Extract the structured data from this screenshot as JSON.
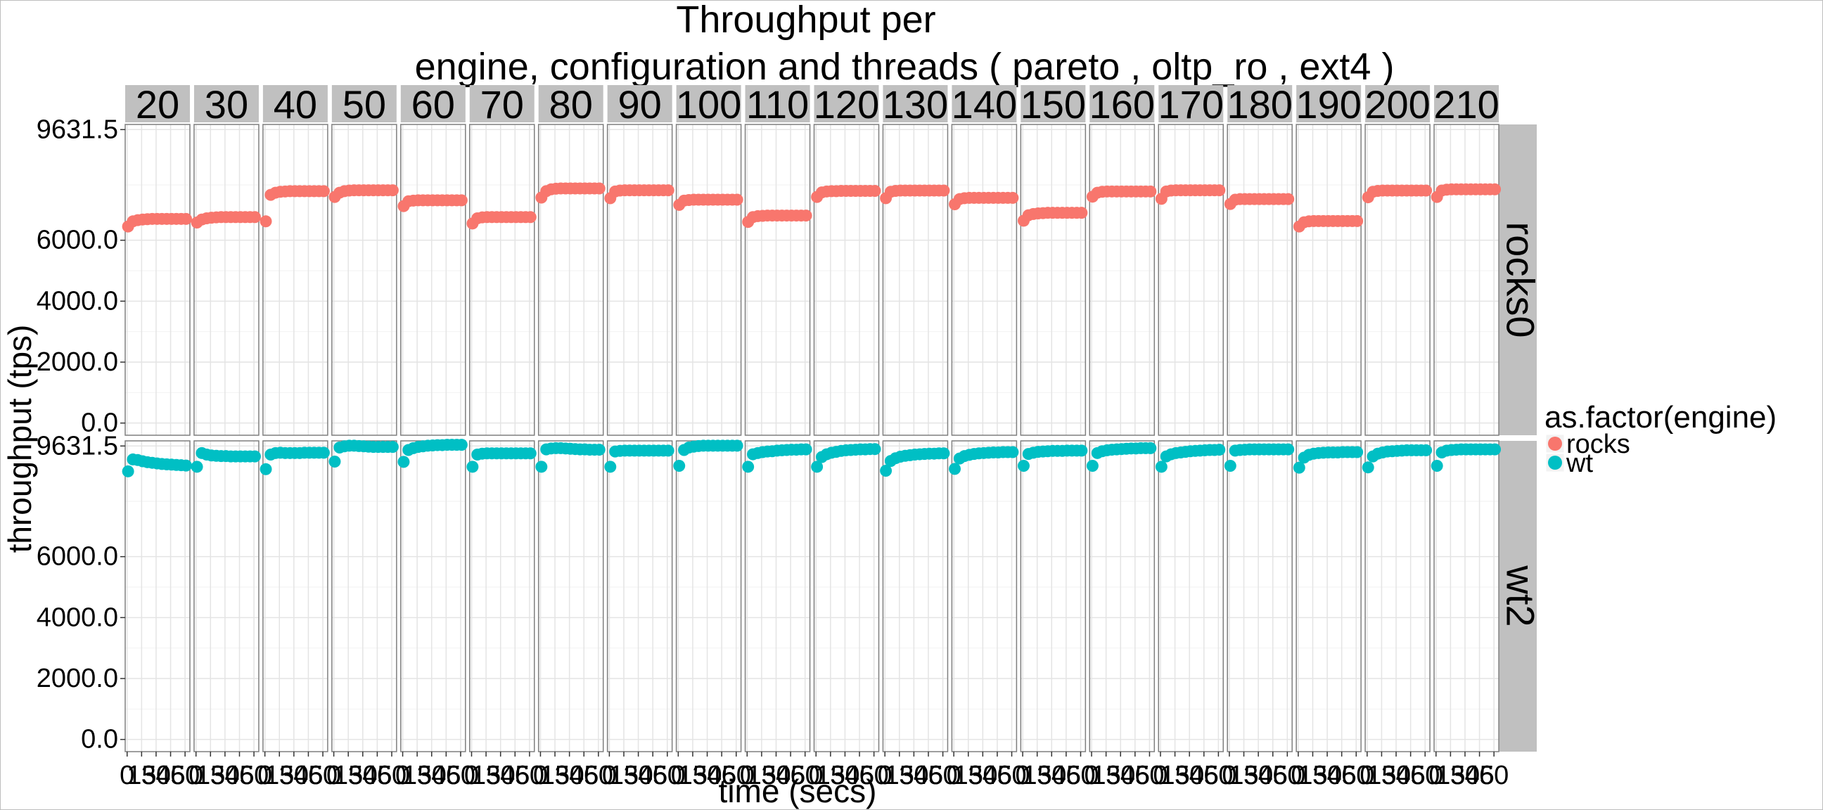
{
  "chart_data": {
    "type": "scatter",
    "title_line1": "Throughput per",
    "title_line2": "engine, configuration and threads ( pareto , oltp_ro , ext4 )",
    "xlabel": "time (secs)",
    "ylabel": "throughput (tps)",
    "facet_columns": [
      "20",
      "30",
      "40",
      "50",
      "60",
      "70",
      "80",
      "90",
      "100",
      "110",
      "120",
      "130",
      "140",
      "150",
      "160",
      "170",
      "180",
      "190",
      "200",
      "210"
    ],
    "facet_rows": [
      "rocks0",
      "wt2"
    ],
    "ylim": [
      -400,
      9800
    ],
    "yticks": [
      0,
      2000,
      4000,
      6000,
      9631.5
    ],
    "ytick_labels": [
      "0.0",
      "2000.0",
      "4000.0",
      "6000.0",
      "9631.5"
    ],
    "xlim": [
      -2,
      65
    ],
    "xticks": [
      0,
      15,
      30,
      45,
      60
    ],
    "xtick_labels": [
      "0",
      "15",
      "30",
      "45",
      "60"
    ],
    "x_times": [
      1,
      6,
      11,
      16,
      21,
      26,
      31,
      36,
      41,
      46,
      51,
      56,
      61
    ],
    "legend": {
      "title": "as.factor(engine)",
      "position": "right",
      "entries": [
        {
          "label": "rocks",
          "color": "#F8766D"
        },
        {
          "label": "wt",
          "color": "#00BFC4"
        }
      ]
    },
    "series": [
      {
        "name": "rocks",
        "facet_row": "rocks0",
        "color": "#F8766D",
        "panels": [
          [
            6450,
            6620,
            6660,
            6680,
            6690,
            6700,
            6700,
            6700,
            6700,
            6700,
            6700,
            6700,
            6700
          ],
          [
            6580,
            6680,
            6720,
            6740,
            6750,
            6760,
            6760,
            6760,
            6760,
            6760,
            6760,
            6760,
            6760
          ],
          [
            6620,
            7490,
            7560,
            7590,
            7600,
            7610,
            7610,
            7610,
            7610,
            7610,
            7610,
            7610,
            7610
          ],
          [
            7420,
            7560,
            7610,
            7630,
            7640,
            7640,
            7640,
            7640,
            7640,
            7640,
            7640,
            7640,
            7640
          ],
          [
            7120,
            7280,
            7300,
            7310,
            7310,
            7310,
            7310,
            7310,
            7310,
            7310,
            7310,
            7310,
            7310
          ],
          [
            6550,
            6720,
            6750,
            6760,
            6760,
            6760,
            6760,
            6760,
            6760,
            6760,
            6760,
            6760,
            6760
          ],
          [
            7400,
            7610,
            7670,
            7690,
            7700,
            7700,
            7700,
            7700,
            7700,
            7700,
            7700,
            7700,
            7700
          ],
          [
            7380,
            7600,
            7630,
            7640,
            7640,
            7640,
            7640,
            7640,
            7640,
            7640,
            7640,
            7640,
            7640
          ],
          [
            7160,
            7300,
            7320,
            7330,
            7330,
            7330,
            7330,
            7330,
            7330,
            7330,
            7330,
            7330,
            7330
          ],
          [
            6600,
            6760,
            6790,
            6800,
            6810,
            6810,
            6810,
            6810,
            6810,
            6810,
            6810,
            6810,
            6810
          ],
          [
            7420,
            7570,
            7600,
            7610,
            7610,
            7620,
            7620,
            7620,
            7620,
            7620,
            7620,
            7620,
            7620
          ],
          [
            7380,
            7590,
            7620,
            7630,
            7630,
            7630,
            7630,
            7630,
            7630,
            7630,
            7630,
            7630,
            7630
          ],
          [
            7180,
            7350,
            7380,
            7390,
            7390,
            7390,
            7390,
            7390,
            7390,
            7390,
            7390,
            7390,
            7390
          ],
          [
            6640,
            6820,
            6860,
            6880,
            6890,
            6900,
            6900,
            6900,
            6900,
            6900,
            6900,
            6900,
            6900
          ],
          [
            7430,
            7560,
            7590,
            7600,
            7600,
            7600,
            7600,
            7600,
            7600,
            7600,
            7600,
            7600,
            7600
          ],
          [
            7360,
            7600,
            7630,
            7640,
            7640,
            7640,
            7640,
            7640,
            7640,
            7640,
            7640,
            7640,
            7640
          ],
          [
            7190,
            7330,
            7350,
            7350,
            7350,
            7350,
            7350,
            7350,
            7350,
            7350,
            7350,
            7350,
            7350
          ],
          [
            6450,
            6590,
            6620,
            6630,
            6630,
            6630,
            6630,
            6630,
            6630,
            6630,
            6630,
            6630,
            6630
          ],
          [
            7410,
            7590,
            7620,
            7630,
            7630,
            7630,
            7630,
            7630,
            7630,
            7630,
            7630,
            7630,
            7630
          ],
          [
            7420,
            7630,
            7660,
            7670,
            7670,
            7670,
            7670,
            7670,
            7670,
            7670,
            7670,
            7670,
            7670
          ]
        ]
      },
      {
        "name": "wt",
        "facet_row": "wt2",
        "color": "#00BFC4",
        "panels": [
          [
            8800,
            9190,
            9170,
            9130,
            9100,
            9080,
            9060,
            9040,
            9030,
            9020,
            9010,
            9000,
            8990
          ],
          [
            8950,
            9400,
            9350,
            9320,
            9310,
            9300,
            9300,
            9290,
            9290,
            9290,
            9290,
            9290,
            9290
          ],
          [
            8870,
            9350,
            9400,
            9410,
            9400,
            9400,
            9400,
            9400,
            9410,
            9410,
            9410,
            9410,
            9410
          ],
          [
            9120,
            9580,
            9620,
            9640,
            9640,
            9630,
            9620,
            9610,
            9600,
            9600,
            9600,
            9600,
            9600
          ],
          [
            9110,
            9500,
            9560,
            9600,
            9620,
            9640,
            9650,
            9660,
            9660,
            9670,
            9670,
            9670,
            9670
          ],
          [
            8950,
            9350,
            9380,
            9390,
            9390,
            9390,
            9390,
            9390,
            9390,
            9390,
            9390,
            9390,
            9390
          ],
          [
            8950,
            9520,
            9550,
            9560,
            9560,
            9550,
            9540,
            9530,
            9520,
            9520,
            9510,
            9510,
            9510
          ],
          [
            8950,
            9450,
            9470,
            9480,
            9480,
            9480,
            9480,
            9480,
            9480,
            9480,
            9480,
            9480,
            9480
          ],
          [
            8980,
            9500,
            9580,
            9610,
            9630,
            9640,
            9640,
            9640,
            9640,
            9640,
            9640,
            9640,
            9640
          ],
          [
            8950,
            9360,
            9400,
            9430,
            9450,
            9460,
            9480,
            9490,
            9500,
            9510,
            9510,
            9520,
            9520
          ],
          [
            8950,
            9270,
            9360,
            9410,
            9440,
            9470,
            9490,
            9500,
            9510,
            9520,
            9520,
            9530,
            9530
          ],
          [
            8820,
            9140,
            9230,
            9280,
            9310,
            9330,
            9350,
            9360,
            9370,
            9380,
            9380,
            9390,
            9390
          ],
          [
            8880,
            9220,
            9300,
            9340,
            9370,
            9390,
            9400,
            9410,
            9420,
            9420,
            9430,
            9430,
            9430
          ],
          [
            8980,
            9370,
            9410,
            9440,
            9450,
            9460,
            9470,
            9470,
            9470,
            9480,
            9480,
            9480,
            9480
          ],
          [
            8980,
            9400,
            9460,
            9490,
            9510,
            9520,
            9530,
            9540,
            9550,
            9550,
            9560,
            9560,
            9560
          ],
          [
            8950,
            9290,
            9360,
            9400,
            9420,
            9440,
            9460,
            9470,
            9480,
            9490,
            9500,
            9500,
            9510
          ],
          [
            8980,
            9480,
            9500,
            9510,
            9520,
            9520,
            9520,
            9520,
            9520,
            9520,
            9520,
            9520,
            9520
          ],
          [
            8920,
            9250,
            9340,
            9380,
            9400,
            9410,
            9420,
            9420,
            9420,
            9430,
            9430,
            9430,
            9430
          ],
          [
            8930,
            9290,
            9380,
            9420,
            9450,
            9460,
            9470,
            9480,
            9490,
            9490,
            9490,
            9490,
            9490
          ],
          [
            8980,
            9420,
            9480,
            9500,
            9510,
            9520,
            9520,
            9520,
            9520,
            9520,
            9520,
            9520,
            9520
          ]
        ]
      }
    ]
  }
}
